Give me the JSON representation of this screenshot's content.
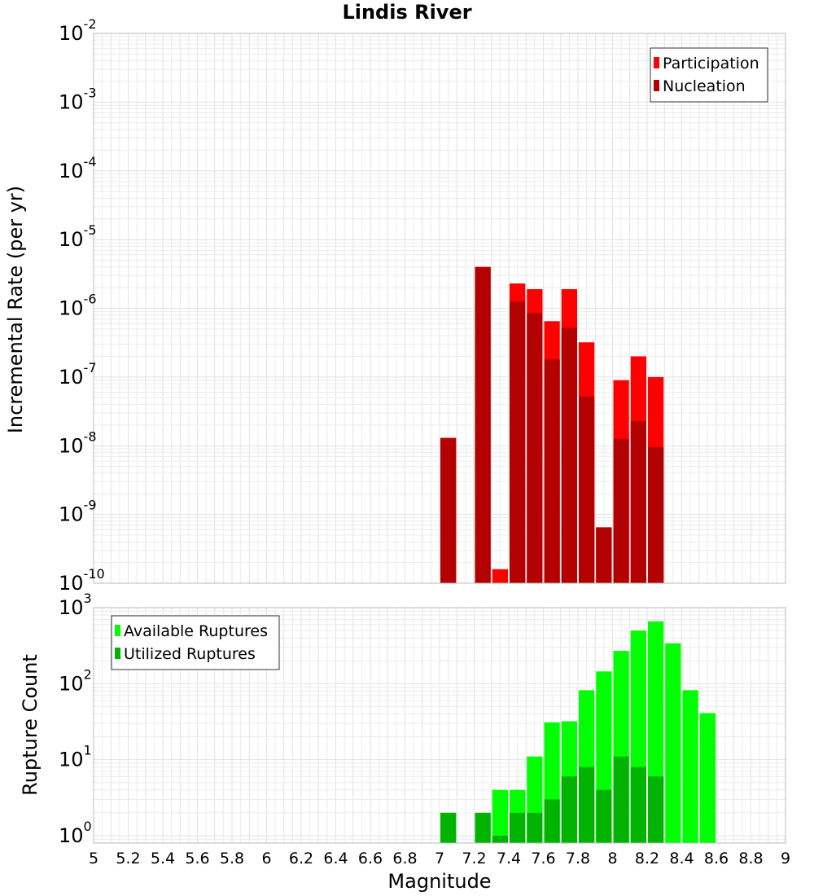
{
  "chart_data": [
    {
      "type": "bar",
      "title": "Lindis River",
      "ylabel": "Incremental Rate (per yr)",
      "yscale": "log",
      "ylim": [
        1e-10,
        0.01
      ],
      "xlim": [
        5,
        9
      ],
      "bar_width": 0.1,
      "legend": {
        "position": "top-right"
      },
      "series": [
        {
          "name": "Participation",
          "color": "#ff0000",
          "x": [
            7.05,
            7.25,
            7.35,
            7.45,
            7.55,
            7.65,
            7.75,
            7.85,
            7.95,
            8.05,
            8.15,
            8.25
          ],
          "values": [
            1.3e-08,
            4e-06,
            1.6e-10,
            2.3e-06,
            1.9e-06,
            6.5e-07,
            1.9e-06,
            3.2e-07,
            6.5e-10,
            9e-08,
            2e-07,
            1e-07
          ]
        },
        {
          "name": "Nucleation",
          "color": "#b30000",
          "x": [
            7.05,
            7.25,
            7.45,
            7.55,
            7.65,
            7.75,
            7.85,
            7.95,
            8.05,
            8.15,
            8.25
          ],
          "values": [
            1.3e-08,
            4e-06,
            1.25e-06,
            8.5e-07,
            1.8e-07,
            5.2e-07,
            5.2e-08,
            6.5e-10,
            1.25e-08,
            2.3e-08,
            9.5e-09
          ]
        }
      ]
    },
    {
      "type": "bar",
      "xlabel": "Magnitude",
      "ylabel": "Rupture Count",
      "yscale": "log",
      "ylim": [
        0.8,
        1000
      ],
      "xlim": [
        5,
        9
      ],
      "xticks": [
        "5",
        "5.2",
        "5.4",
        "5.6",
        "5.8",
        "6",
        "6.2",
        "6.4",
        "6.6",
        "6.8",
        "7",
        "7.2",
        "7.4",
        "7.6",
        "7.8",
        "8",
        "8.2",
        "8.4",
        "8.6",
        "8.8",
        "9"
      ],
      "bar_width": 0.1,
      "legend": {
        "position": "top-left"
      },
      "series": [
        {
          "name": "Available Ruptures",
          "color": "#00ff00",
          "x": [
            7.05,
            7.25,
            7.35,
            7.45,
            7.55,
            7.65,
            7.75,
            7.85,
            7.95,
            8.05,
            8.15,
            8.25,
            8.35,
            8.45,
            8.55
          ],
          "values": [
            2,
            2,
            4,
            4,
            11,
            31,
            32,
            82,
            145,
            270,
            500,
            660,
            340,
            82,
            41
          ]
        },
        {
          "name": "Utilized Ruptures",
          "color": "#00b300",
          "x": [
            7.05,
            7.25,
            7.35,
            7.45,
            7.55,
            7.65,
            7.75,
            7.85,
            7.95,
            8.05,
            8.15,
            8.25
          ],
          "values": [
            2,
            2,
            1,
            2,
            2,
            3,
            6,
            8,
            4,
            11,
            8,
            6
          ]
        }
      ]
    }
  ]
}
